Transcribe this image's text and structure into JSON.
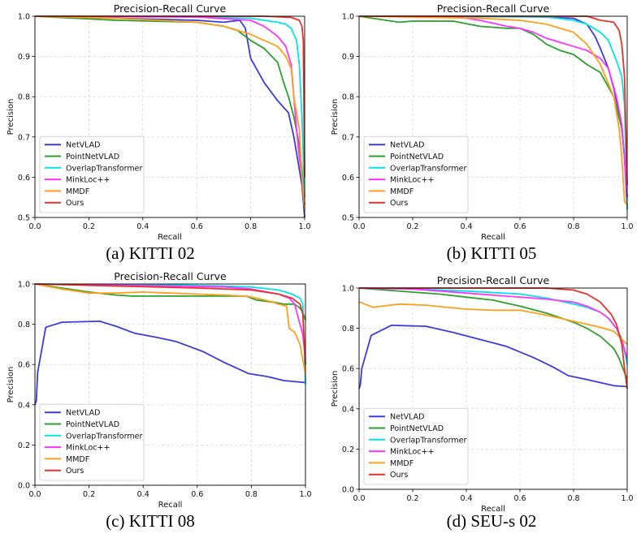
{
  "chart_data": [
    {
      "type": "line",
      "title": "Precision-Recall Curve",
      "xlabel": "Recall",
      "ylabel": "Precision",
      "caption": "(a) KITTI 02",
      "xlim": [
        0,
        1
      ],
      "ylim": [
        0.5,
        1.0
      ],
      "xticks": [
        "0.0",
        "0.2",
        "0.4",
        "0.6",
        "0.8",
        "1.0"
      ],
      "yticks": [
        "0.5",
        "0.6",
        "0.7",
        "0.8",
        "0.9",
        "1.0"
      ],
      "grid": true,
      "legend": "lower-left",
      "series": [
        {
          "name": "NetVLAD",
          "color": "#3b3bdd",
          "x": [
            0,
            0.3,
            0.6,
            0.7,
            0.76,
            0.78,
            0.8,
            0.85,
            0.9,
            0.94,
            0.96,
            0.98,
            0.99,
            1.0
          ],
          "y": [
            1,
            0.995,
            0.99,
            0.985,
            0.99,
            0.97,
            0.895,
            0.835,
            0.79,
            0.76,
            0.7,
            0.62,
            0.58,
            0.5
          ]
        },
        {
          "name": "PointNetVLAD",
          "color": "#2ca02c",
          "x": [
            0,
            0.3,
            0.6,
            0.7,
            0.75,
            0.8,
            0.85,
            0.9,
            0.92,
            0.94,
            0.96,
            0.98,
            0.99,
            1.0
          ],
          "y": [
            1,
            0.99,
            0.985,
            0.975,
            0.965,
            0.94,
            0.92,
            0.885,
            0.84,
            0.8,
            0.75,
            0.68,
            0.62,
            0.53
          ]
        },
        {
          "name": "OverlapTransformer",
          "color": "#00e5e5",
          "x": [
            0,
            0.6,
            0.8,
            0.85,
            0.9,
            0.93,
            0.95,
            0.97,
            0.98,
            0.99,
            1.0
          ],
          "y": [
            1,
            0.998,
            0.995,
            0.99,
            0.985,
            0.98,
            0.97,
            0.94,
            0.88,
            0.75,
            0.55
          ]
        },
        {
          "name": "MinkLoc++",
          "color": "#ff33ff",
          "x": [
            0,
            0.6,
            0.8,
            0.85,
            0.88,
            0.9,
            0.93,
            0.95,
            0.96,
            0.97,
            0.98,
            0.99,
            1.0
          ],
          "y": [
            1,
            0.998,
            0.99,
            0.975,
            0.96,
            0.95,
            0.925,
            0.88,
            0.8,
            0.72,
            0.65,
            0.6,
            0.53
          ]
        },
        {
          "name": "MMDF",
          "color": "#ff9f1c",
          "x": [
            0,
            0.3,
            0.6,
            0.7,
            0.75,
            0.8,
            0.85,
            0.9,
            0.93,
            0.95,
            0.96,
            0.98,
            0.99,
            1.0
          ],
          "y": [
            1,
            0.995,
            0.985,
            0.975,
            0.965,
            0.955,
            0.94,
            0.925,
            0.9,
            0.87,
            0.8,
            0.72,
            0.6,
            0.52
          ]
        },
        {
          "name": "Ours",
          "color": "#e8322a",
          "x": [
            0,
            0.85,
            0.95,
            0.98,
            0.99,
            0.995,
            1.0
          ],
          "y": [
            1,
            1,
            0.997,
            0.99,
            0.975,
            0.94,
            0.6
          ]
        }
      ]
    },
    {
      "type": "line",
      "title": "Precision-Recall Curve",
      "xlabel": "Recall",
      "ylabel": "Precision",
      "caption": "(b) KITTI 05",
      "xlim": [
        0,
        1
      ],
      "ylim": [
        0.5,
        1.0
      ],
      "xticks": [
        "0.0",
        "0.2",
        "0.4",
        "0.6",
        "0.8",
        "1.0"
      ],
      "yticks": [
        "0.5",
        "0.6",
        "0.7",
        "0.8",
        "0.9",
        "1.0"
      ],
      "grid": true,
      "legend": "lower-left",
      "series": [
        {
          "name": "NetVLAD",
          "color": "#3b3bdd",
          "x": [
            0,
            0.6,
            0.8,
            0.85,
            0.88,
            0.9,
            0.93,
            0.95,
            0.97,
            0.98,
            0.99,
            1.0
          ],
          "y": [
            1,
            1,
            0.995,
            0.98,
            0.95,
            0.92,
            0.87,
            0.82,
            0.76,
            0.72,
            0.65,
            0.52
          ]
        },
        {
          "name": "PointNetVLAD",
          "color": "#2ca02c",
          "x": [
            0,
            0.1,
            0.15,
            0.2,
            0.35,
            0.45,
            0.55,
            0.6,
            0.65,
            0.7,
            0.75,
            0.8,
            0.85,
            0.9,
            0.95,
            0.98,
            0.99,
            1.0
          ],
          "y": [
            1,
            0.99,
            0.985,
            0.988,
            0.988,
            0.975,
            0.97,
            0.97,
            0.955,
            0.93,
            0.915,
            0.905,
            0.88,
            0.86,
            0.8,
            0.72,
            0.65,
            0.55
          ]
        },
        {
          "name": "OverlapTransformer",
          "color": "#00e5e5",
          "x": [
            0,
            0.7,
            0.8,
            0.85,
            0.9,
            0.93,
            0.96,
            0.98,
            0.99,
            1.0
          ],
          "y": [
            1,
            0.998,
            0.99,
            0.98,
            0.96,
            0.94,
            0.89,
            0.85,
            0.78,
            0.52
          ]
        },
        {
          "name": "MinkLoc++",
          "color": "#ff33ff",
          "x": [
            0,
            0.35,
            0.45,
            0.55,
            0.6,
            0.65,
            0.7,
            0.75,
            0.8,
            0.85,
            0.9,
            0.93,
            0.96,
            0.98,
            0.99,
            1.0
          ],
          "y": [
            1,
            1,
            0.99,
            0.975,
            0.97,
            0.96,
            0.945,
            0.935,
            0.925,
            0.915,
            0.895,
            0.87,
            0.8,
            0.73,
            0.65,
            0.55
          ]
        },
        {
          "name": "MMDF",
          "color": "#ff9f1c",
          "x": [
            0,
            0.45,
            0.6,
            0.7,
            0.75,
            0.8,
            0.85,
            0.9,
            0.95,
            0.97,
            0.98,
            0.99,
            1.0
          ],
          "y": [
            1,
            0.995,
            0.99,
            0.98,
            0.97,
            0.96,
            0.93,
            0.88,
            0.8,
            0.72,
            0.65,
            0.54,
            0.53
          ]
        },
        {
          "name": "Ours",
          "color": "#e8322a",
          "x": [
            0,
            0.85,
            0.9,
            0.95,
            0.97,
            0.98,
            0.99,
            1.0
          ],
          "y": [
            1,
            1,
            0.99,
            0.985,
            0.965,
            0.93,
            0.85,
            0.58
          ]
        }
      ]
    },
    {
      "type": "line",
      "title": "Precision-Recall Curve",
      "xlabel": "Recall",
      "ylabel": "Precision",
      "caption": "(c) KITTI 08",
      "xlim": [
        0,
        1
      ],
      "ylim": [
        0.0,
        1.0
      ],
      "xticks": [
        "0.0",
        "0.2",
        "0.4",
        "0.6",
        "0.8",
        "1.0"
      ],
      "yticks": [
        "0.0",
        "0.2",
        "0.4",
        "0.6",
        "0.8",
        "1.0"
      ],
      "grid": true,
      "legend": "lower-left",
      "series": [
        {
          "name": "NetVLAD",
          "color": "#3b3bdd",
          "x": [
            0,
            0.005,
            0.01,
            0.04,
            0.1,
            0.24,
            0.3,
            0.37,
            0.45,
            0.52,
            0.62,
            0.7,
            0.79,
            0.86,
            0.92,
            1.0
          ],
          "y": [
            0.4,
            0.42,
            0.56,
            0.785,
            0.81,
            0.815,
            0.79,
            0.755,
            0.735,
            0.715,
            0.665,
            0.61,
            0.555,
            0.54,
            0.52,
            0.51
          ]
        },
        {
          "name": "PointNetVLAD",
          "color": "#2ca02c",
          "x": [
            0,
            0.1,
            0.2,
            0.3,
            0.36,
            0.5,
            0.7,
            0.78,
            0.82,
            0.88,
            0.92,
            0.96,
            0.98,
            0.99,
            1.0
          ],
          "y": [
            1,
            0.98,
            0.96,
            0.945,
            0.94,
            0.94,
            0.94,
            0.94,
            0.92,
            0.91,
            0.9,
            0.9,
            0.88,
            0.86,
            0.82
          ]
        },
        {
          "name": "OverlapTransformer",
          "color": "#00e5e5",
          "x": [
            0,
            0.5,
            0.7,
            0.8,
            0.9,
            0.95,
            0.98,
            0.99,
            1.0
          ],
          "y": [
            1,
            0.995,
            0.99,
            0.985,
            0.97,
            0.95,
            0.93,
            0.9,
            0.5
          ]
        },
        {
          "name": "MinkLoc++",
          "color": "#ff33ff",
          "x": [
            0,
            0.5,
            0.7,
            0.8,
            0.9,
            0.94,
            0.96,
            0.97,
            0.98,
            0.99,
            1.0
          ],
          "y": [
            1,
            0.99,
            0.985,
            0.975,
            0.95,
            0.93,
            0.9,
            0.85,
            0.8,
            0.75,
            0.62
          ]
        },
        {
          "name": "MMDF",
          "color": "#ff9f1c",
          "x": [
            0,
            0.1,
            0.2,
            0.3,
            0.4,
            0.5,
            0.7,
            0.78,
            0.82,
            0.88,
            0.9,
            0.93,
            0.94,
            0.96,
            0.98,
            1.0
          ],
          "y": [
            1,
            0.975,
            0.955,
            0.955,
            0.96,
            0.955,
            0.945,
            0.94,
            0.93,
            0.91,
            0.9,
            0.89,
            0.78,
            0.76,
            0.7,
            0.55
          ]
        },
        {
          "name": "Ours",
          "color": "#e8322a",
          "x": [
            0,
            0.3,
            0.6,
            0.8,
            0.9,
            0.95,
            0.98,
            0.99,
            1.0
          ],
          "y": [
            1,
            0.99,
            0.98,
            0.97,
            0.95,
            0.93,
            0.9,
            0.85,
            0.6
          ]
        }
      ]
    },
    {
      "type": "line",
      "title": "Precision-Recall Curve",
      "xlabel": "Recall",
      "ylabel": "Precision",
      "caption": "(d) SEU-s 02",
      "xlim": [
        0,
        1
      ],
      "ylim": [
        0.0,
        1.0
      ],
      "xticks": [
        "0.0",
        "0.2",
        "0.4",
        "0.6",
        "0.8",
        "1.0"
      ],
      "yticks": [
        "0.0",
        "0.2",
        "0.4",
        "0.6",
        "0.8",
        "1.0"
      ],
      "grid": true,
      "legend": "lower-left",
      "series": [
        {
          "name": "NetVLAD",
          "color": "#3b3bdd",
          "x": [
            0,
            0.005,
            0.01,
            0.045,
            0.12,
            0.25,
            0.35,
            0.45,
            0.55,
            0.65,
            0.72,
            0.78,
            0.85,
            0.95,
            1.0
          ],
          "y": [
            0.5,
            0.52,
            0.6,
            0.765,
            0.815,
            0.81,
            0.78,
            0.745,
            0.71,
            0.655,
            0.61,
            0.565,
            0.545,
            0.515,
            0.51
          ]
        },
        {
          "name": "PointNetVLAD",
          "color": "#2ca02c",
          "x": [
            0,
            0.1,
            0.2,
            0.3,
            0.4,
            0.5,
            0.6,
            0.7,
            0.8,
            0.85,
            0.9,
            0.95,
            0.97,
            0.99,
            1.0
          ],
          "y": [
            1,
            0.99,
            0.98,
            0.97,
            0.955,
            0.94,
            0.91,
            0.875,
            0.83,
            0.8,
            0.76,
            0.7,
            0.65,
            0.58,
            0.55
          ]
        },
        {
          "name": "OverlapTransformer",
          "color": "#00e5e5",
          "x": [
            0,
            0.2,
            0.4,
            0.6,
            0.7,
            0.8,
            0.85,
            0.9,
            0.93,
            0.96,
            0.98,
            1.0
          ],
          "y": [
            1,
            0.995,
            0.985,
            0.97,
            0.95,
            0.92,
            0.905,
            0.88,
            0.85,
            0.8,
            0.75,
            0.62
          ]
        },
        {
          "name": "MinkLoc++",
          "color": "#ff33ff",
          "x": [
            0,
            0.2,
            0.4,
            0.6,
            0.7,
            0.8,
            0.85,
            0.9,
            0.93,
            0.96,
            0.98,
            1.0
          ],
          "y": [
            1,
            0.995,
            0.975,
            0.955,
            0.945,
            0.93,
            0.91,
            0.88,
            0.85,
            0.8,
            0.74,
            0.65
          ]
        },
        {
          "name": "MMDF",
          "color": "#ff9f1c",
          "x": [
            0,
            0.005,
            0.05,
            0.15,
            0.25,
            0.4,
            0.5,
            0.6,
            0.7,
            0.8,
            0.9,
            0.95,
            1.0
          ],
          "y": [
            0.93,
            0.93,
            0.905,
            0.92,
            0.915,
            0.895,
            0.89,
            0.89,
            0.865,
            0.835,
            0.805,
            0.785,
            0.72
          ]
        },
        {
          "name": "Ours",
          "color": "#e8322a",
          "x": [
            0,
            0.7,
            0.8,
            0.85,
            0.9,
            0.94,
            0.96,
            0.98,
            0.99,
            1.0
          ],
          "y": [
            1,
            1,
            0.99,
            0.97,
            0.93,
            0.87,
            0.82,
            0.72,
            0.6,
            0.5
          ]
        }
      ]
    }
  ]
}
